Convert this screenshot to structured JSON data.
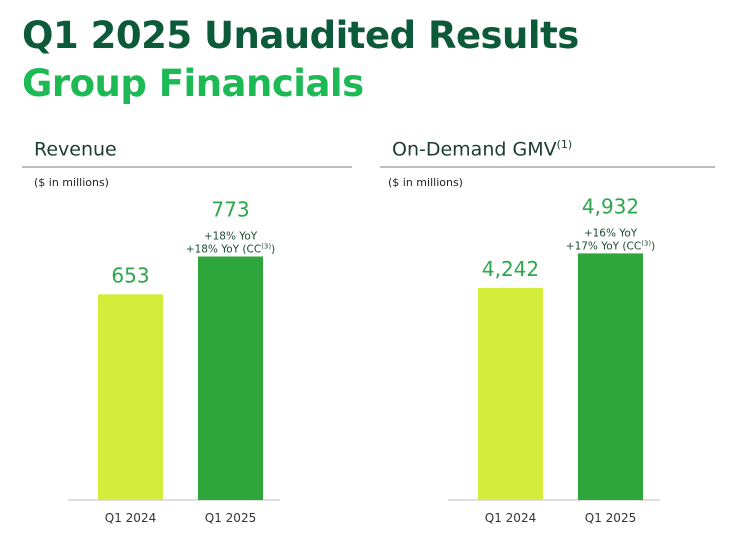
{
  "header": {
    "title_line1": "Q1 2025 Unaudited Results",
    "title_line2": "Group Financials"
  },
  "colors": {
    "dark_green": "#0c5a3a",
    "bright_green": "#1db954",
    "bar_q1_2024": "#d4ec3a",
    "bar_q1_2025": "#2ea63c"
  },
  "chart_data": [
    {
      "type": "bar",
      "title": "Revenue",
      "title_superscript": "",
      "unit_note": "($ in millions)",
      "categories": [
        "Q1 2024",
        "Q1 2025"
      ],
      "values": [
        653,
        773
      ],
      "value_labels": [
        "653",
        "773"
      ],
      "annotations": [
        [],
        [
          {
            "text": "+18% YoY",
            "sup": "",
            "suffix": ""
          },
          {
            "text": "+18% YoY (CC",
            "sup": "(3)",
            "suffix": ")"
          }
        ]
      ],
      "ylim": [
        0,
        1000
      ]
    },
    {
      "type": "bar",
      "title": "On-Demand GMV",
      "title_superscript": "(1)",
      "unit_note": "($ in millions)",
      "categories": [
        "Q1 2024",
        "Q1 2025"
      ],
      "values": [
        4242,
        4932
      ],
      "value_labels": [
        "4,242",
        "4,932"
      ],
      "annotations": [
        [],
        [
          {
            "text": "+16% YoY",
            "sup": "",
            "suffix": ""
          },
          {
            "text": "+17% YoY (CC",
            "sup": "(3)",
            "suffix": ")"
          }
        ]
      ],
      "ylim": [
        0,
        6300
      ]
    }
  ]
}
